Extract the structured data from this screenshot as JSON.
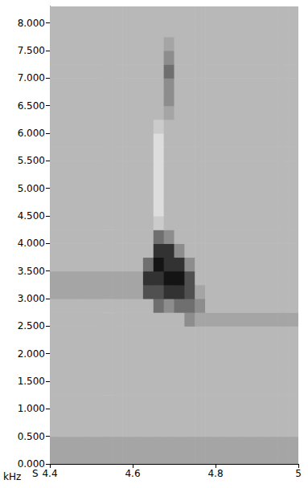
{
  "chart_data": {
    "type": "heatmap",
    "x_label": "S",
    "y_label": "kHz",
    "x": [
      4.4125,
      4.4375,
      4.4625,
      4.4875,
      4.5125,
      4.5375,
      4.5625,
      4.5875,
      4.6125,
      4.6375,
      4.6625,
      4.6875,
      4.7125,
      4.7375,
      4.7625,
      4.7875,
      4.8125,
      4.8375,
      4.8625,
      4.8875,
      4.9125,
      4.9375,
      4.9625,
      4.9875
    ],
    "y": [
      0.125,
      0.375,
      0.625,
      0.875,
      1.125,
      1.375,
      1.625,
      1.875,
      2.125,
      2.375,
      2.625,
      2.875,
      3.125,
      3.375,
      3.625,
      3.875,
      4.125,
      4.375,
      4.625,
      4.875,
      5.125,
      5.375,
      5.625,
      5.875,
      6.125,
      6.375,
      6.625,
      6.875,
      7.125,
      7.375,
      7.625,
      7.875,
      8.125,
      8.375
    ],
    "z": [
      [
        4,
        4,
        4,
        4,
        4,
        4,
        4,
        4,
        4,
        4,
        4,
        4,
        4,
        4,
        4,
        4,
        4,
        4,
        4,
        4,
        4,
        4,
        4,
        4
      ],
      [
        4,
        4,
        4,
        4,
        4,
        4,
        4,
        4,
        4,
        4,
        4,
        4,
        4,
        4,
        4,
        4,
        4,
        4,
        4,
        4,
        4,
        4,
        4,
        4
      ],
      [
        3,
        3,
        3,
        3,
        3,
        3,
        3,
        3,
        3,
        3,
        3,
        3,
        3,
        3,
        3,
        3,
        3,
        3,
        3,
        3,
        3,
        3,
        3,
        3
      ],
      [
        3,
        3,
        3,
        3,
        3,
        3,
        3,
        3,
        3,
        3,
        3,
        3,
        3,
        3,
        3,
        3,
        3,
        3,
        3,
        3,
        3,
        3,
        3,
        3
      ],
      [
        3,
        3,
        3,
        3,
        3,
        3,
        3,
        3,
        3,
        3,
        3,
        3,
        3,
        3,
        3,
        3,
        3,
        3,
        3,
        3,
        3,
        3,
        3,
        3
      ],
      [
        3,
        3,
        3,
        3,
        3,
        3,
        3,
        3,
        3,
        3,
        3,
        3,
        3,
        3,
        3,
        3,
        3,
        3,
        3,
        3,
        3,
        3,
        3,
        3
      ],
      [
        3,
        3,
        3,
        3,
        3,
        3,
        3,
        3,
        3,
        3,
        3,
        3,
        3,
        3,
        3,
        3,
        3,
        3,
        3,
        3,
        3,
        3,
        3,
        3
      ],
      [
        3,
        3,
        3,
        3,
        3,
        3,
        3,
        3,
        3,
        3,
        3,
        3,
        3,
        3,
        3,
        3,
        3,
        3,
        3,
        3,
        3,
        3,
        3,
        3
      ],
      [
        3,
        3,
        3,
        3,
        3,
        3,
        3,
        3,
        3,
        3,
        3,
        3,
        3,
        3,
        3,
        3,
        3,
        3,
        3,
        3,
        3,
        3,
        3,
        3
      ],
      [
        3,
        3,
        3,
        3,
        3,
        3,
        3,
        3,
        3,
        3,
        3,
        3,
        3,
        3,
        3,
        3,
        3,
        3,
        3,
        3,
        3,
        3,
        3,
        3
      ],
      [
        3,
        3,
        3,
        3,
        3,
        3,
        3,
        3,
        3,
        3,
        3,
        3,
        3,
        5,
        4,
        4,
        4,
        4,
        4,
        4,
        4,
        4,
        4,
        4
      ],
      [
        3,
        3,
        3,
        3,
        3,
        3,
        3,
        3,
        3,
        3,
        6,
        5,
        6,
        6,
        5,
        3,
        3,
        3,
        3,
        3,
        3,
        3,
        3,
        3
      ],
      [
        4,
        4,
        4,
        4,
        4,
        4,
        4,
        4,
        4,
        7,
        7,
        8,
        8,
        7,
        4,
        3,
        3,
        3,
        3,
        3,
        3,
        3,
        3,
        3
      ],
      [
        4,
        4,
        4,
        4,
        4,
        4,
        4,
        4,
        4,
        8,
        8,
        9,
        9,
        7,
        3,
        3,
        3,
        3,
        3,
        3,
        3,
        3,
        3,
        3
      ],
      [
        3,
        3,
        3,
        3,
        3,
        3,
        3,
        3,
        3,
        6,
        9,
        8,
        8,
        5,
        3,
        3,
        3,
        3,
        3,
        3,
        3,
        3,
        3,
        3
      ],
      [
        3,
        3,
        3,
        3,
        3,
        3,
        3,
        3,
        3,
        3,
        8,
        8,
        5,
        3,
        3,
        3,
        3,
        3,
        3,
        3,
        3,
        3,
        3,
        3
      ],
      [
        3,
        3,
        3,
        3,
        3,
        3,
        3,
        3,
        3,
        3,
        6,
        5,
        3,
        3,
        3,
        3,
        3,
        3,
        3,
        3,
        3,
        3,
        3,
        3
      ],
      [
        3,
        3,
        3,
        3,
        3,
        3,
        3,
        3,
        3,
        3,
        2,
        3,
        3,
        3,
        3,
        3,
        3,
        3,
        3,
        3,
        3,
        3,
        3,
        3
      ],
      [
        3,
        3,
        3,
        3,
        3,
        3,
        3,
        3,
        3,
        3,
        1,
        3,
        3,
        3,
        3,
        3,
        3,
        3,
        3,
        3,
        3,
        3,
        3,
        3
      ],
      [
        3,
        3,
        3,
        3,
        3,
        3,
        3,
        3,
        3,
        3,
        1,
        3,
        3,
        3,
        3,
        3,
        3,
        3,
        3,
        3,
        3,
        3,
        3,
        3
      ],
      [
        3,
        3,
        3,
        3,
        3,
        3,
        3,
        3,
        3,
        3,
        1,
        3,
        3,
        3,
        3,
        3,
        3,
        3,
        3,
        3,
        3,
        3,
        3,
        3
      ],
      [
        3,
        3,
        3,
        3,
        3,
        3,
        3,
        3,
        3,
        3,
        1,
        3,
        3,
        3,
        3,
        3,
        3,
        3,
        3,
        3,
        3,
        3,
        3,
        3
      ],
      [
        3,
        3,
        3,
        3,
        3,
        3,
        3,
        3,
        3,
        3,
        1,
        3,
        3,
        3,
        3,
        3,
        3,
        3,
        3,
        3,
        3,
        3,
        3,
        3
      ],
      [
        3,
        3,
        3,
        3,
        3,
        3,
        3,
        3,
        3,
        3,
        1,
        3,
        3,
        3,
        3,
        3,
        3,
        3,
        3,
        3,
        3,
        3,
        3,
        3
      ],
      [
        3,
        3,
        3,
        3,
        3,
        3,
        3,
        3,
        3,
        3,
        2,
        3,
        3,
        3,
        3,
        3,
        3,
        3,
        3,
        3,
        3,
        3,
        3,
        3
      ],
      [
        3,
        3,
        3,
        3,
        3,
        3,
        3,
        3,
        3,
        3,
        3,
        4,
        3,
        3,
        3,
        3,
        3,
        3,
        3,
        3,
        3,
        3,
        3,
        3
      ],
      [
        3,
        3,
        3,
        3,
        3,
        3,
        3,
        3,
        3,
        3,
        3,
        5,
        3,
        3,
        3,
        3,
        3,
        3,
        3,
        3,
        3,
        3,
        3,
        3
      ],
      [
        3,
        3,
        3,
        3,
        3,
        3,
        3,
        3,
        3,
        3,
        3,
        5,
        3,
        3,
        3,
        3,
        3,
        3,
        3,
        3,
        3,
        3,
        3,
        3
      ],
      [
        3,
        3,
        3,
        3,
        3,
        3,
        3,
        3,
        3,
        3,
        3,
        6,
        3,
        3,
        3,
        3,
        3,
        3,
        3,
        3,
        3,
        3,
        3,
        3
      ],
      [
        3,
        3,
        3,
        3,
        3,
        3,
        3,
        3,
        3,
        3,
        3,
        5,
        3,
        3,
        3,
        3,
        3,
        3,
        3,
        3,
        3,
        3,
        3,
        3
      ],
      [
        3,
        3,
        3,
        3,
        3,
        3,
        3,
        3,
        3,
        3,
        3,
        4,
        3,
        3,
        3,
        3,
        3,
        3,
        3,
        3,
        3,
        3,
        3,
        3
      ],
      [
        3,
        3,
        3,
        3,
        3,
        3,
        3,
        3,
        3,
        3,
        3,
        3,
        3,
        3,
        3,
        3,
        3,
        3,
        3,
        3,
        3,
        3,
        3,
        3
      ],
      [
        3,
        3,
        3,
        3,
        3,
        3,
        3,
        3,
        3,
        3,
        3,
        3,
        3,
        3,
        3,
        3,
        3,
        3,
        3,
        3,
        3,
        3,
        3,
        3
      ],
      [
        3,
        3,
        3,
        3,
        3,
        3,
        3,
        3,
        3,
        3,
        3,
        3,
        3,
        3,
        3,
        3,
        3,
        3,
        3,
        3,
        3,
        3,
        3,
        3
      ]
    ],
    "zlim": [
      0,
      9
    ],
    "xlim": [
      4.4,
      5
    ],
    "xticks": [
      4.4,
      4.6,
      4.8,
      5
    ],
    "ylim": [
      0,
      8.3
    ],
    "yticks": [
      {
        "value": 0,
        "label": "0.000"
      },
      {
        "value": 0.5,
        "label": "0.500"
      },
      {
        "value": 1,
        "label": "1.000"
      },
      {
        "value": 1.5,
        "label": "1.500"
      },
      {
        "value": 2,
        "label": "2.000"
      },
      {
        "value": 2.5,
        "label": "2.500"
      },
      {
        "value": 3,
        "label": "3.000"
      },
      {
        "value": 3.5,
        "label": "3.500"
      },
      {
        "value": 4,
        "label": "4.000"
      },
      {
        "value": 4.5,
        "label": "4.500"
      },
      {
        "value": 5,
        "label": "5.000"
      },
      {
        "value": 5.5,
        "label": "5.500"
      },
      {
        "value": 6,
        "label": "6.000"
      },
      {
        "value": 6.5,
        "label": "6.500"
      },
      {
        "value": 7,
        "label": "7.000"
      },
      {
        "value": 7.5,
        "label": "7.500"
      },
      {
        "value": 8,
        "label": "8.000"
      }
    ],
    "grid": false
  }
}
